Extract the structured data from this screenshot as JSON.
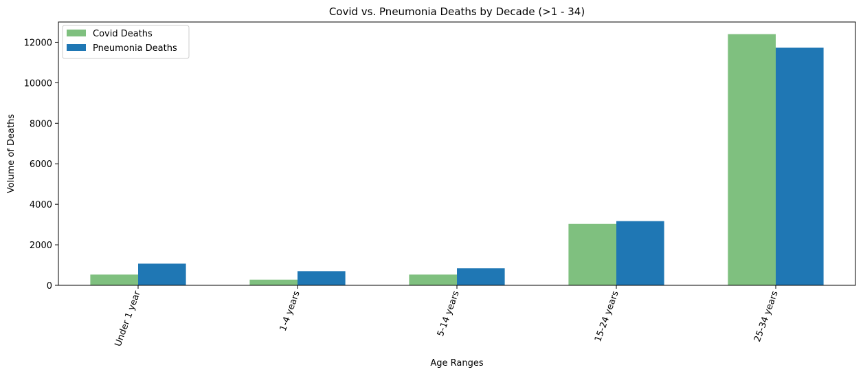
{
  "chart_data": {
    "type": "bar",
    "title": "Covid vs. Pneumonia Deaths by Decade (>1 - 34)",
    "xlabel": "Age Ranges",
    "ylabel": "Volume of Deaths",
    "categories": [
      "Under 1 year",
      "1-4 years",
      "5-14 years",
      "15-24 years",
      "25-34 years"
    ],
    "series": [
      {
        "name": "Covid Deaths",
        "color": "#7fc07f",
        "values": [
          530,
          280,
          530,
          3030,
          12400
        ]
      },
      {
        "name": "Pneumonia Deaths",
        "color": "#1f77b4",
        "values": [
          1070,
          700,
          840,
          3170,
          11730
        ]
      }
    ],
    "ylim": [
      0,
      13000
    ],
    "yticks": [
      0,
      2000,
      4000,
      6000,
      8000,
      10000,
      12000
    ],
    "grid": false,
    "legend_position": "top-left",
    "xtick_rotation": "rotated"
  }
}
